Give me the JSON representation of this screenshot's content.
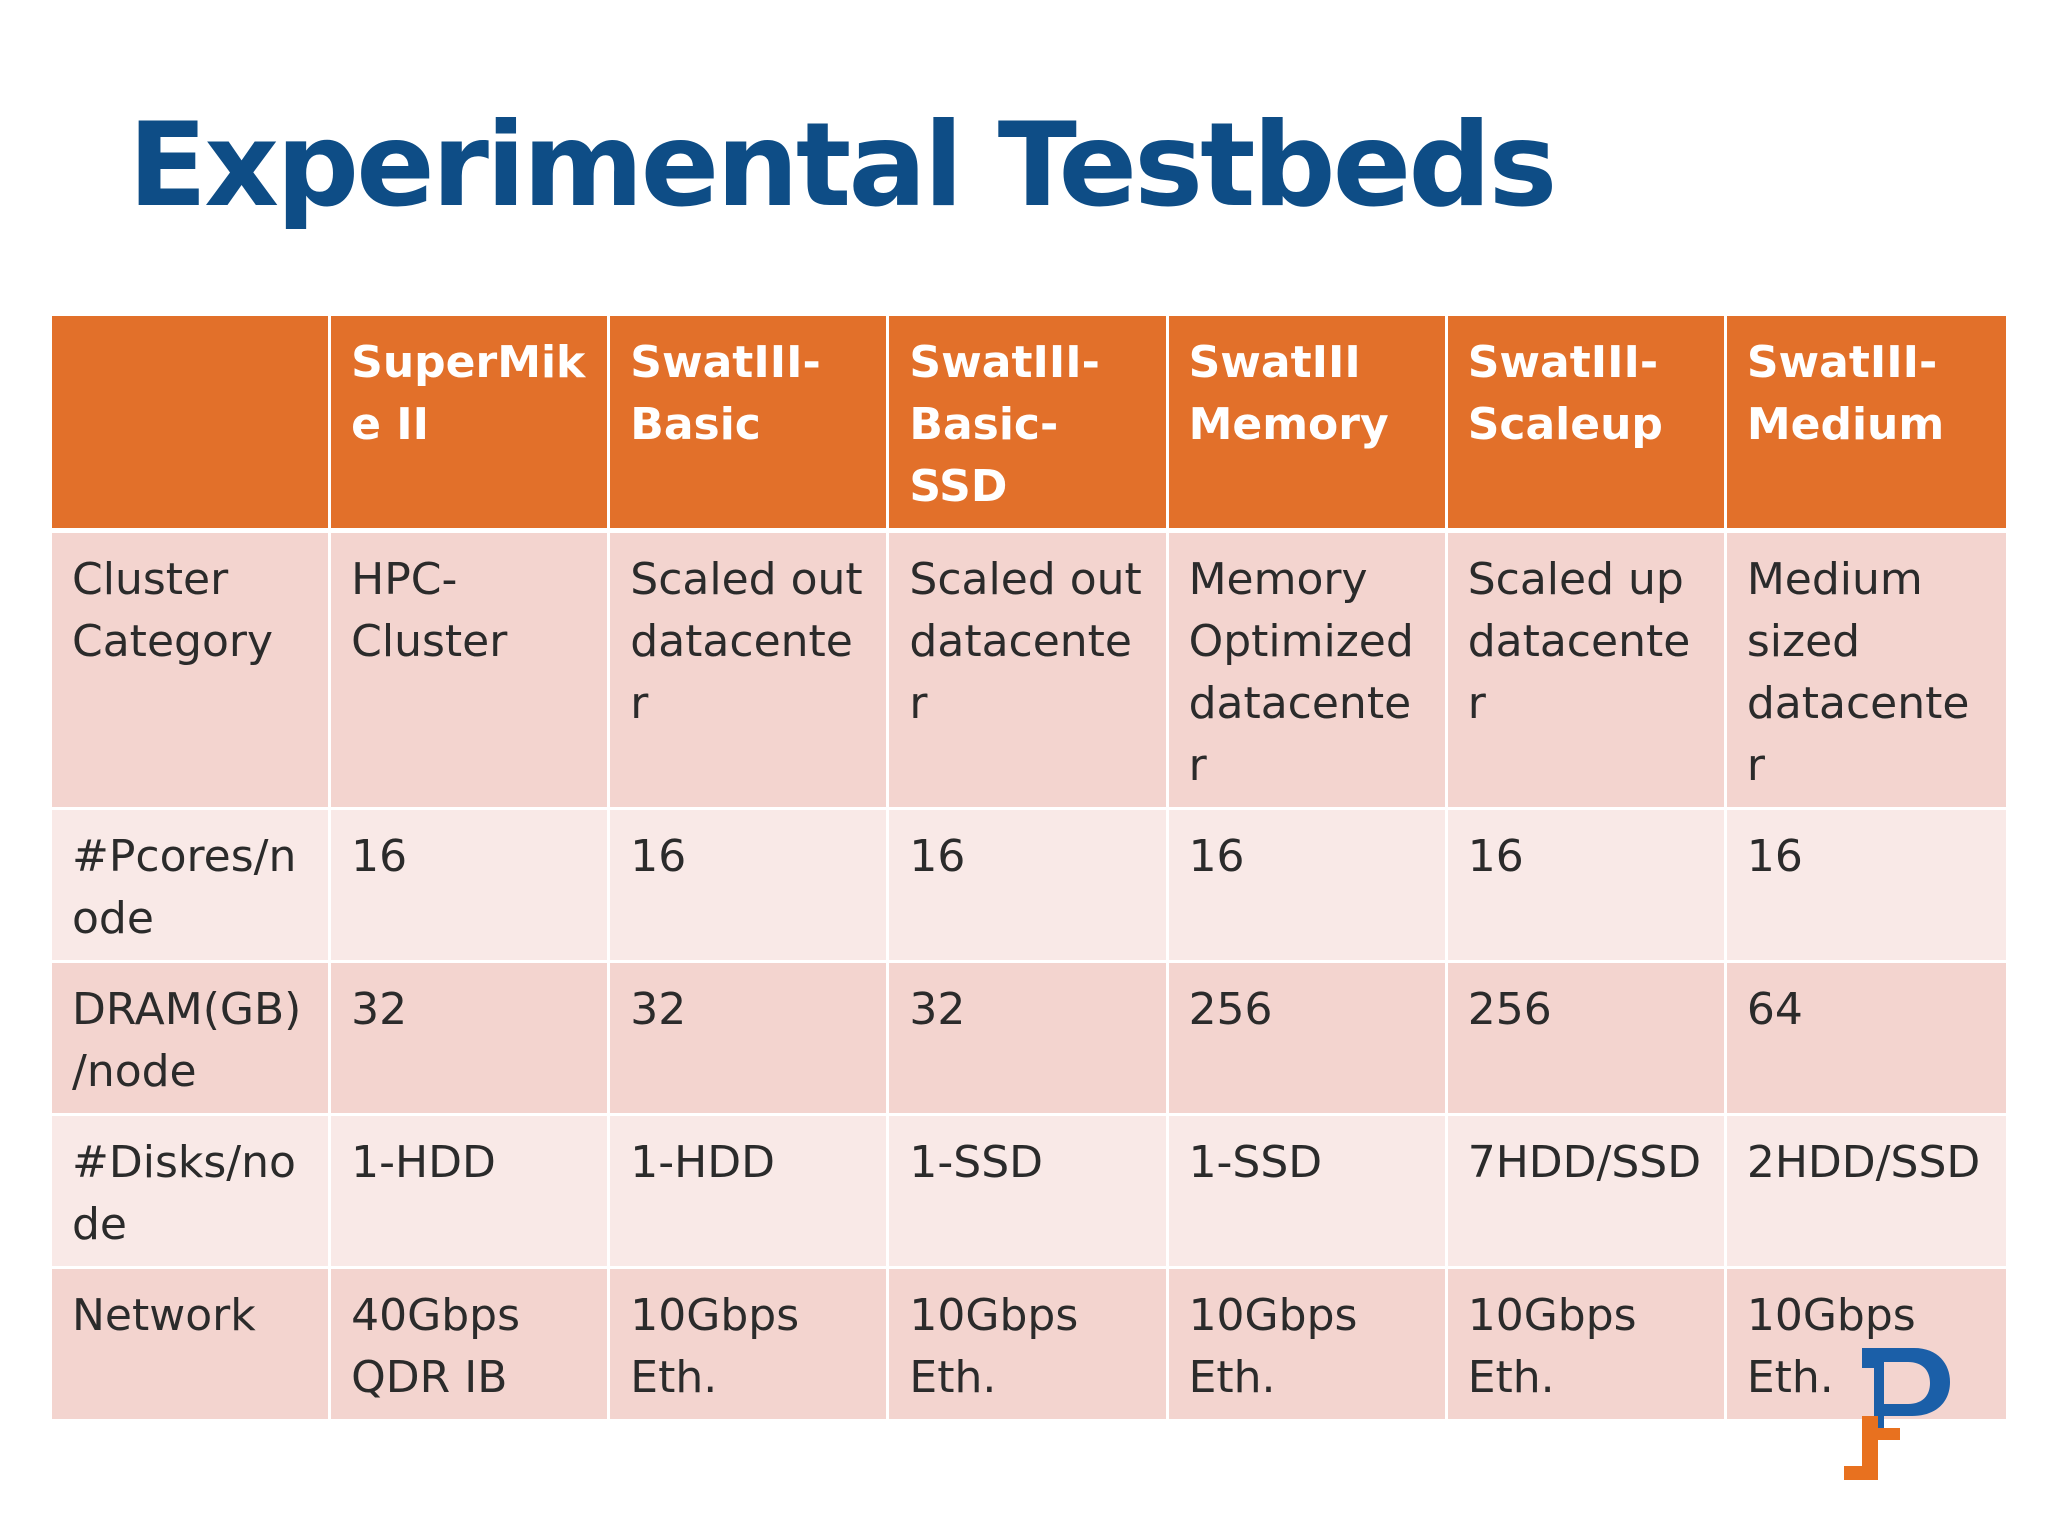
{
  "slide": {
    "title": "Experimental Testbeds"
  },
  "table": {
    "header": [
      "",
      "SuperMike II",
      "SwatIII-Basic",
      "SwatIII-Basic-SSD",
      "SwatIII Memory",
      "SwatIII-Scaleup",
      "SwatIII-Medium"
    ],
    "rows": [
      {
        "label": "Cluster Category",
        "cells": [
          "HPC-Cluster",
          "Scaled out datacenter",
          "Scaled out datacenter",
          "Memory Optimized datacenter",
          "Scaled up datacenter",
          "Medium sized datacenter"
        ]
      },
      {
        "label": "#Pcores/node",
        "cells": [
          "16",
          "16",
          "16",
          "16",
          "16",
          "16"
        ]
      },
      {
        "label": "DRAM(GB)/node",
        "cells": [
          "32",
          "32",
          "32",
          "256",
          "256",
          "64"
        ]
      },
      {
        "label": "#Disks/node",
        "cells": [
          "1-HDD",
          "1-HDD",
          "1-SSD",
          "1-SSD",
          "7HDD/SSD",
          "2HDD/SSD"
        ]
      },
      {
        "label": "Network",
        "cells": [
          "40Gbps QDR IB",
          "10Gbps Eth.",
          "10Gbps Eth.",
          "10Gbps Eth.",
          "10Gbps Eth.",
          "10Gbps Eth."
        ]
      }
    ]
  },
  "logo": {
    "icon": "p-monogram-logo-icon",
    "colors": {
      "blue": "#1b5fa8",
      "orange": "#e8711f"
    }
  },
  "colors": {
    "title": "#0e4d86",
    "header_fill": "#e2702a",
    "row_dark": "#f3d4cf",
    "row_light": "#f9e9e7"
  }
}
